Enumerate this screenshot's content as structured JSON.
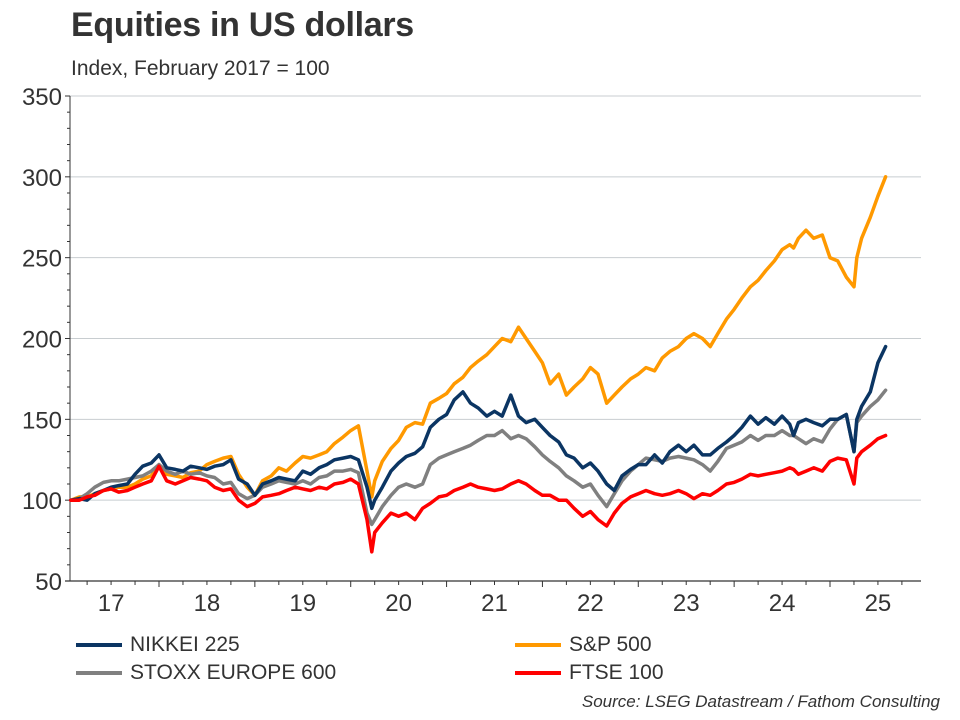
{
  "chart_data": {
    "type": "line",
    "title": "Equities in US dollars",
    "subtitle": "Index, February 2017 = 100",
    "xlabel": "",
    "ylabel": "",
    "ylim": [
      50,
      350
    ],
    "yticks": [
      50,
      100,
      150,
      200,
      250,
      300,
      350
    ],
    "ytick_labels": [
      "50",
      "100",
      "150",
      "200",
      "250",
      "300",
      "350"
    ],
    "xlim": [
      2017.08,
      2025.58
    ],
    "xticks": [
      2017,
      2018,
      2019,
      2020,
      2021,
      2022,
      2023,
      2024,
      2025
    ],
    "xtick_labels": [
      "17",
      "18",
      "19",
      "20",
      "21",
      "22",
      "23",
      "24",
      "25"
    ],
    "grid": "horizontal",
    "legend_position": "bottom",
    "source": "Source: LSEG Datastream / Fathom Consulting",
    "x": [
      2017.08,
      2017.17,
      2017.25,
      2017.33,
      2017.42,
      2017.5,
      2017.58,
      2017.67,
      2017.75,
      2017.83,
      2017.92,
      2018.0,
      2018.08,
      2018.17,
      2018.25,
      2018.33,
      2018.42,
      2018.5,
      2018.58,
      2018.67,
      2018.75,
      2018.83,
      2018.92,
      2019.0,
      2019.08,
      2019.17,
      2019.25,
      2019.33,
      2019.42,
      2019.5,
      2019.58,
      2019.67,
      2019.75,
      2019.83,
      2019.92,
      2020.0,
      2020.08,
      2020.17,
      2020.22,
      2020.25,
      2020.33,
      2020.42,
      2020.5,
      2020.58,
      2020.67,
      2020.75,
      2020.83,
      2020.92,
      2021.0,
      2021.08,
      2021.17,
      2021.25,
      2021.33,
      2021.42,
      2021.5,
      2021.58,
      2021.67,
      2021.75,
      2021.83,
      2021.92,
      2022.0,
      2022.08,
      2022.17,
      2022.25,
      2022.33,
      2022.42,
      2022.5,
      2022.58,
      2022.67,
      2022.75,
      2022.83,
      2022.92,
      2023.0,
      2023.08,
      2023.17,
      2023.25,
      2023.33,
      2023.42,
      2023.5,
      2023.58,
      2023.67,
      2023.75,
      2023.83,
      2023.92,
      2024.0,
      2024.08,
      2024.17,
      2024.25,
      2024.33,
      2024.42,
      2024.5,
      2024.58,
      2024.62,
      2024.67,
      2024.75,
      2024.83,
      2024.92,
      2025.0,
      2025.08,
      2025.17,
      2025.25,
      2025.28,
      2025.33,
      2025.42,
      2025.5,
      2025.58
    ],
    "series": [
      {
        "name": "NIKKEI 225",
        "color": "#0b3563",
        "values": [
          100,
          101,
          100,
          104,
          106,
          108,
          109,
          110,
          116,
          121,
          123,
          128,
          120,
          119,
          118,
          121,
          120,
          119,
          121,
          122,
          125,
          113,
          110,
          103,
          110,
          112,
          114,
          113,
          112,
          118,
          116,
          120,
          122,
          125,
          126,
          127,
          125,
          108,
          95,
          100,
          108,
          118,
          123,
          127,
          129,
          133,
          145,
          150,
          153,
          162,
          167,
          160,
          157,
          152,
          155,
          152,
          165,
          152,
          148,
          150,
          145,
          140,
          136,
          128,
          126,
          120,
          123,
          118,
          110,
          106,
          115,
          119,
          122,
          122,
          128,
          123,
          130,
          134,
          130,
          134,
          128,
          128,
          132,
          136,
          140,
          145,
          152,
          147,
          151,
          147,
          152,
          147,
          140,
          148,
          150,
          148,
          146,
          150,
          150,
          153,
          130,
          150,
          158,
          167,
          185,
          195,
          190
        ]
      },
      {
        "name": "S&P 500",
        "color": "#ff9900",
        "values": [
          100,
          102,
          102,
          104,
          106,
          107,
          108,
          108,
          110,
          113,
          115,
          122,
          116,
          115,
          114,
          117,
          118,
          122,
          124,
          126,
          127,
          116,
          108,
          103,
          112,
          115,
          120,
          118,
          123,
          127,
          126,
          128,
          130,
          135,
          139,
          143,
          146,
          118,
          102,
          112,
          124,
          132,
          137,
          145,
          148,
          147,
          160,
          163,
          166,
          172,
          176,
          182,
          186,
          190,
          195,
          200,
          198,
          207,
          200,
          192,
          185,
          172,
          178,
          165,
          170,
          175,
          182,
          178,
          160,
          165,
          170,
          175,
          178,
          182,
          180,
          188,
          192,
          195,
          200,
          203,
          200,
          195,
          203,
          212,
          218,
          225,
          232,
          236,
          242,
          248,
          255,
          258,
          256,
          262,
          267,
          262,
          264,
          250,
          248,
          238,
          232,
          250,
          262,
          275,
          288,
          300,
          296
        ]
      },
      {
        "name": "STOXX EUROPE 600",
        "color": "#808080",
        "values": [
          100,
          101,
          104,
          108,
          111,
          112,
          112,
          113,
          114,
          115,
          118,
          122,
          118,
          116,
          118,
          116,
          117,
          115,
          114,
          110,
          111,
          104,
          101,
          103,
          108,
          110,
          112,
          111,
          110,
          112,
          110,
          114,
          115,
          118,
          118,
          119,
          117,
          92,
          85,
          88,
          96,
          103,
          108,
          110,
          108,
          110,
          122,
          126,
          128,
          130,
          132,
          134,
          137,
          140,
          140,
          143,
          138,
          140,
          138,
          133,
          128,
          124,
          120,
          115,
          112,
          108,
          110,
          103,
          96,
          104,
          112,
          118,
          122,
          126,
          125,
          124,
          126,
          127,
          126,
          125,
          122,
          118,
          124,
          132,
          134,
          136,
          140,
          137,
          140,
          140,
          143,
          140,
          140,
          138,
          135,
          138,
          136,
          144,
          150,
          153,
          130,
          148,
          152,
          158,
          162,
          168,
          170
        ]
      },
      {
        "name": "FTSE 100",
        "color": "#ff0000",
        "values": [
          100,
          100,
          102,
          103,
          106,
          107,
          105,
          106,
          108,
          110,
          112,
          121,
          112,
          110,
          112,
          114,
          113,
          112,
          108,
          106,
          107,
          100,
          96,
          98,
          102,
          103,
          104,
          106,
          108,
          107,
          106,
          108,
          107,
          110,
          111,
          113,
          110,
          88,
          68,
          80,
          86,
          92,
          90,
          92,
          88,
          95,
          98,
          102,
          103,
          106,
          108,
          110,
          108,
          107,
          106,
          107,
          110,
          112,
          110,
          106,
          103,
          103,
          100,
          100,
          95,
          90,
          93,
          88,
          84,
          92,
          98,
          102,
          104,
          106,
          104,
          103,
          104,
          106,
          104,
          101,
          104,
          103,
          106,
          110,
          111,
          113,
          116,
          115,
          116,
          117,
          118,
          120,
          119,
          116,
          118,
          120,
          118,
          124,
          126,
          125,
          110,
          126,
          130,
          134,
          138,
          140,
          142
        ]
      }
    ]
  }
}
